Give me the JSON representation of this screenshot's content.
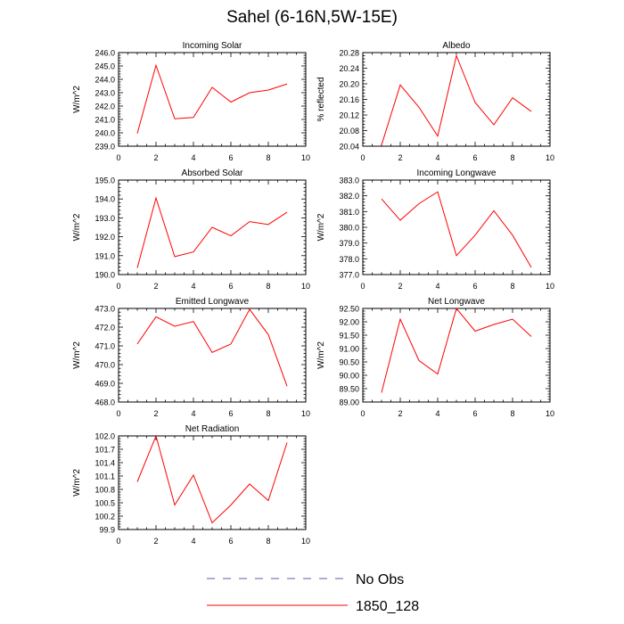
{
  "page": {
    "title": "Sahel (6-16N,5W-15E)"
  },
  "legend": {
    "items": [
      {
        "label": "No Obs",
        "color": "#5b5bb0",
        "style": "dashed"
      },
      {
        "label": "1850_128",
        "color": "#ff0000",
        "style": "solid"
      }
    ]
  },
  "chart_data": [
    {
      "type": "line",
      "title": "Incoming Solar",
      "xlabel": "",
      "ylabel": "W/m^2",
      "xlim": [
        0,
        10
      ],
      "ylim": [
        239.0,
        246.0
      ],
      "xticks": [
        0,
        2,
        4,
        6,
        8,
        10
      ],
      "yticks": [
        "239.0",
        "240.0",
        "241.0",
        "242.0",
        "243.0",
        "244.0",
        "245.0",
        "246.0"
      ],
      "series": [
        {
          "color": "#ff0000",
          "x": [
            1,
            2,
            3,
            4,
            5,
            6,
            7,
            8,
            9
          ],
          "y": [
            239.95,
            245.05,
            241.05,
            241.15,
            243.4,
            242.3,
            243.0,
            243.2,
            243.65
          ]
        }
      ]
    },
    {
      "type": "line",
      "title": "Albedo",
      "xlabel": "",
      "ylabel": "% reflected",
      "xlim": [
        0,
        10
      ],
      "ylim": [
        20.04,
        20.28
      ],
      "xticks": [
        0,
        2,
        4,
        6,
        8,
        10
      ],
      "yticks": [
        "20.04",
        "20.08",
        "20.12",
        "20.16",
        "20.20",
        "20.24",
        "20.28"
      ],
      "series": [
        {
          "color": "#ff0000",
          "x": [
            1,
            2,
            3,
            4,
            5,
            6,
            7,
            8,
            9
          ],
          "y": [
            20.043,
            20.197,
            20.14,
            20.066,
            20.272,
            20.152,
            20.095,
            20.164,
            20.129
          ]
        }
      ]
    },
    {
      "type": "line",
      "title": "Absorbed Solar",
      "xlabel": "",
      "ylabel": "W/m^2",
      "xlim": [
        0,
        10
      ],
      "ylim": [
        190.0,
        195.0
      ],
      "xticks": [
        0,
        2,
        4,
        6,
        8,
        10
      ],
      "yticks": [
        "190.0",
        "191.0",
        "192.0",
        "193.0",
        "194.0",
        "195.0"
      ],
      "series": [
        {
          "color": "#ff0000",
          "x": [
            1,
            2,
            3,
            4,
            5,
            6,
            7,
            8,
            9
          ],
          "y": [
            190.35,
            194.05,
            190.95,
            191.2,
            192.5,
            192.05,
            192.8,
            192.65,
            193.3
          ]
        }
      ]
    },
    {
      "type": "line",
      "title": "Incoming Longwave",
      "xlabel": "",
      "ylabel": "W/m^2",
      "xlim": [
        0,
        10
      ],
      "ylim": [
        377.0,
        383.0
      ],
      "xticks": [
        0,
        2,
        4,
        6,
        8,
        10
      ],
      "yticks": [
        "377.0",
        "378.0",
        "379.0",
        "380.0",
        "381.0",
        "382.0",
        "383.0"
      ],
      "series": [
        {
          "color": "#ff0000",
          "x": [
            1,
            2,
            3,
            4,
            5,
            6,
            7,
            8,
            9
          ],
          "y": [
            381.8,
            380.45,
            381.5,
            382.25,
            378.2,
            379.5,
            381.05,
            379.5,
            377.45
          ]
        }
      ]
    },
    {
      "type": "line",
      "title": "Emitted Longwave",
      "xlabel": "",
      "ylabel": "W/m^2",
      "xlim": [
        0,
        10
      ],
      "ylim": [
        468.0,
        473.0
      ],
      "xticks": [
        0,
        2,
        4,
        6,
        8,
        10
      ],
      "yticks": [
        "468.0",
        "469.0",
        "470.0",
        "471.0",
        "472.0",
        "473.0"
      ],
      "series": [
        {
          "color": "#ff0000",
          "x": [
            1,
            2,
            3,
            4,
            5,
            6,
            7,
            8,
            9
          ],
          "y": [
            471.1,
            472.55,
            472.05,
            472.3,
            470.65,
            471.1,
            472.95,
            471.6,
            468.85
          ]
        }
      ]
    },
    {
      "type": "line",
      "title": "Net Longwave",
      "xlabel": "",
      "ylabel": "W/m^2",
      "xlim": [
        0,
        10
      ],
      "ylim": [
        89.0,
        92.5
      ],
      "xticks": [
        0,
        2,
        4,
        6,
        8,
        10
      ],
      "yticks": [
        "89.00",
        "89.50",
        "90.00",
        "90.50",
        "91.00",
        "91.50",
        "92.00",
        "92.50"
      ],
      "series": [
        {
          "color": "#ff0000",
          "x": [
            1,
            2,
            3,
            4,
            5,
            6,
            7,
            8,
            9
          ],
          "y": [
            89.35,
            92.1,
            90.55,
            90.05,
            92.5,
            91.65,
            91.9,
            92.1,
            91.45
          ]
        }
      ]
    },
    {
      "type": "line",
      "title": "Net Radiation",
      "xlabel": "",
      "ylabel": "W/m^2",
      "xlim": [
        0,
        10
      ],
      "ylim": [
        99.9,
        102.0
      ],
      "xticks": [
        0,
        2,
        4,
        6,
        8,
        10
      ],
      "yticks": [
        "99.9",
        "100.2",
        "100.5",
        "100.8",
        "101.1",
        "101.4",
        "101.7",
        "102.0"
      ],
      "series": [
        {
          "color": "#ff0000",
          "x": [
            1,
            2,
            3,
            4,
            5,
            6,
            7,
            8,
            9
          ],
          "y": [
            100.97,
            102.0,
            100.45,
            101.12,
            100.05,
            100.45,
            100.92,
            100.55,
            101.85
          ]
        }
      ]
    }
  ]
}
